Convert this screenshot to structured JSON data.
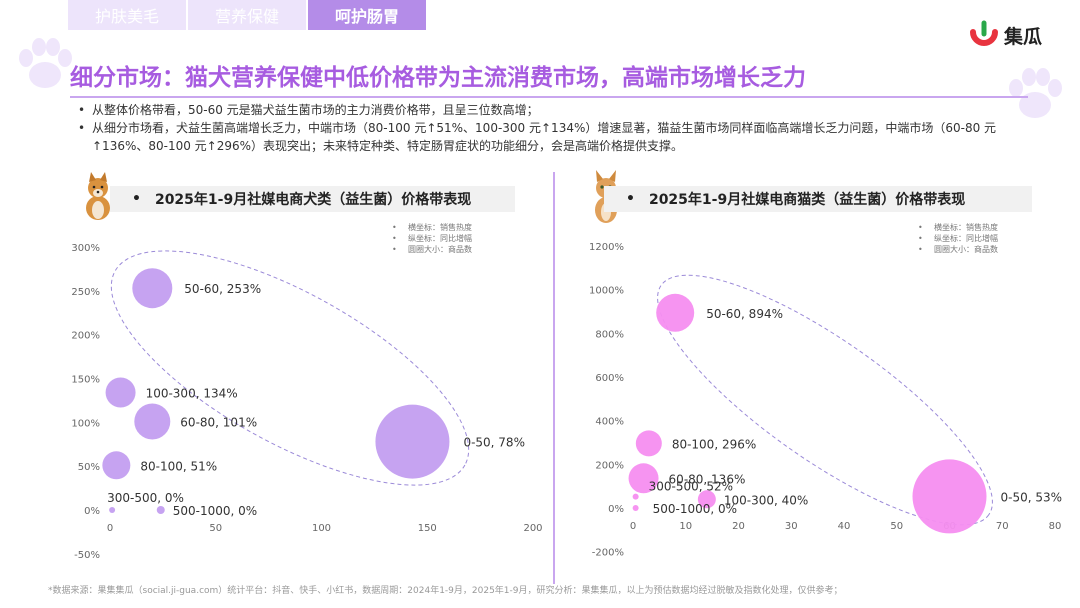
{
  "tabs": [
    {
      "label": "护肤美毛",
      "active": false
    },
    {
      "label": "营养保健",
      "active": false
    },
    {
      "label": "呵护肠胃",
      "active": true
    }
  ],
  "logo": {
    "text": "集瓜"
  },
  "title": "细分市场：猫犬营养保健中低价格带为主流消费市场，高端市场增长乏力",
  "bullets": [
    "从整体价格带看，50-60 元是猫犬益生菌市场的主力消费价格带，且呈三位数高增；",
    "从细分市场看，犬益生菌高端增长乏力，中端市场（80-100 元↑51%、100-300 元↑134%）增速显著，猫益生菌市场同样面临高端增长乏力问题，中端市场（60-80 元↑136%、80-100 元↑296%）表现突出；未来特定种类、特定肠胃症状的功能细分，会是高端价格提供支撑。"
  ],
  "legend": [
    "横坐标：销售热度",
    "纵坐标：同比增幅",
    "圆圈大小：商品数"
  ],
  "footer": "*数据来源：果集集瓜（social.ji-gua.com）统计平台：抖音、快手、小红书，数据周期：2024年1-9月，2025年1-9月，研究分析：果集集瓜，以上为预估数据均经过脱敏及指数化处理，仅供参考；",
  "colors": {
    "dog": "#c39ef0",
    "cat": "#f58ef0",
    "accent": "#a75ce0"
  },
  "chart_data": [
    {
      "type": "scatter",
      "title": "2025年1-9月社媒电商犬类（益生菌）价格带表现",
      "xlim": [
        0,
        200
      ],
      "ylim": [
        -0.5,
        3.0
      ],
      "xticks": [
        "0",
        "50",
        "100",
        "150",
        "200"
      ],
      "xtick_values": [
        0,
        50,
        100,
        150,
        200
      ],
      "yticks": [
        "-50%",
        "0%",
        "50%",
        "100%",
        "150%",
        "200%",
        "250%",
        "300%"
      ],
      "ytick_values": [
        -0.5,
        0,
        0.5,
        1.0,
        1.5,
        2.0,
        2.5,
        3.0
      ],
      "points": [
        {
          "label": "50-60, 253%",
          "x": 20,
          "y": 2.53,
          "r": 20
        },
        {
          "label": "100-300, 134%",
          "x": 5,
          "y": 1.34,
          "r": 15
        },
        {
          "label": "60-80, 101%",
          "x": 20,
          "y": 1.01,
          "r": 18
        },
        {
          "label": "80-100, 51%",
          "x": 3,
          "y": 0.51,
          "r": 14
        },
        {
          "label": "0-50, 78%",
          "x": 143,
          "y": 0.78,
          "r": 37
        },
        {
          "label": "300-500, 0%",
          "x": 1,
          "y": 0,
          "r": 3
        },
        {
          "label": "500-1000, 0%",
          "x": 24,
          "y": 0,
          "r": 4
        }
      ]
    },
    {
      "type": "scatter",
      "title": "2025年1-9月社媒电商猫类（益生菌）价格带表现",
      "xlim": [
        0,
        80
      ],
      "ylim": [
        -2.0,
        12.0
      ],
      "xticks": [
        "0",
        "10",
        "20",
        "30",
        "40",
        "50",
        "60",
        "70",
        "80"
      ],
      "xtick_values": [
        0,
        10,
        20,
        30,
        40,
        50,
        60,
        70,
        80
      ],
      "yticks": [
        "-200%",
        "0%",
        "200%",
        "400%",
        "600%",
        "800%",
        "1000%",
        "1200%"
      ],
      "ytick_values": [
        -2,
        0,
        2,
        4,
        6,
        8,
        10,
        12
      ],
      "points": [
        {
          "label": "50-60, 894%",
          "x": 8,
          "y": 8.94,
          "r": 19
        },
        {
          "label": "80-100, 296%",
          "x": 3,
          "y": 2.96,
          "r": 13
        },
        {
          "label": "60-80, 136%",
          "x": 2,
          "y": 1.36,
          "r": 15
        },
        {
          "label": "300-500, 52%",
          "x": 0.5,
          "y": 0.52,
          "r": 3
        },
        {
          "label": "100-300, 40%",
          "x": 14,
          "y": 0.4,
          "r": 9
        },
        {
          "label": "500-1000, 0%",
          "x": 0.5,
          "y": 0,
          "r": 3
        },
        {
          "label": "0-50, 53%",
          "x": 60,
          "y": 0.53,
          "r": 37
        }
      ]
    }
  ]
}
